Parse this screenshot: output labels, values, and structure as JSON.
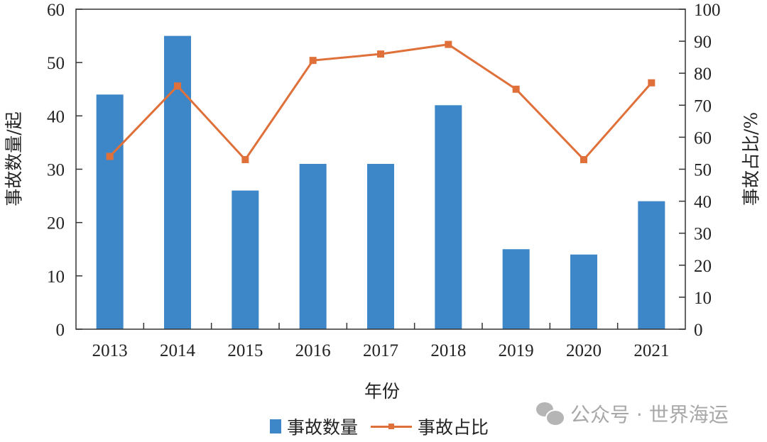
{
  "chart_data": {
    "type": "bar+line",
    "title": "",
    "categories": [
      "2013",
      "2014",
      "2015",
      "2016",
      "2017",
      "2018",
      "2019",
      "2020",
      "2021"
    ],
    "series": [
      {
        "name": "事故数量",
        "type": "bar",
        "axis": "left",
        "color": "#3d87c8",
        "values": [
          44,
          55,
          26,
          31,
          31,
          42,
          15,
          14,
          24
        ]
      },
      {
        "name": "事故占比",
        "type": "line",
        "axis": "right",
        "color": "#e0703a",
        "values": [
          54,
          76,
          53,
          84,
          86,
          89,
          75,
          53,
          77
        ]
      }
    ],
    "xlabel": "年份",
    "ylabel": "事故数量/起",
    "ylabel_right": "事故占比/%",
    "ylim": [
      0,
      60
    ],
    "ylim_right": [
      0,
      100
    ],
    "yticks": [
      0,
      10,
      20,
      30,
      40,
      50,
      60
    ],
    "yticks_right": [
      0,
      10,
      20,
      30,
      40,
      50,
      60,
      70,
      80,
      90,
      100
    ],
    "grid": false,
    "legend_position": "bottom"
  },
  "legend": {
    "bar_label": "事故数量",
    "line_label": "事故占比"
  },
  "watermark": {
    "text": "公众号 · 世界海运"
  }
}
